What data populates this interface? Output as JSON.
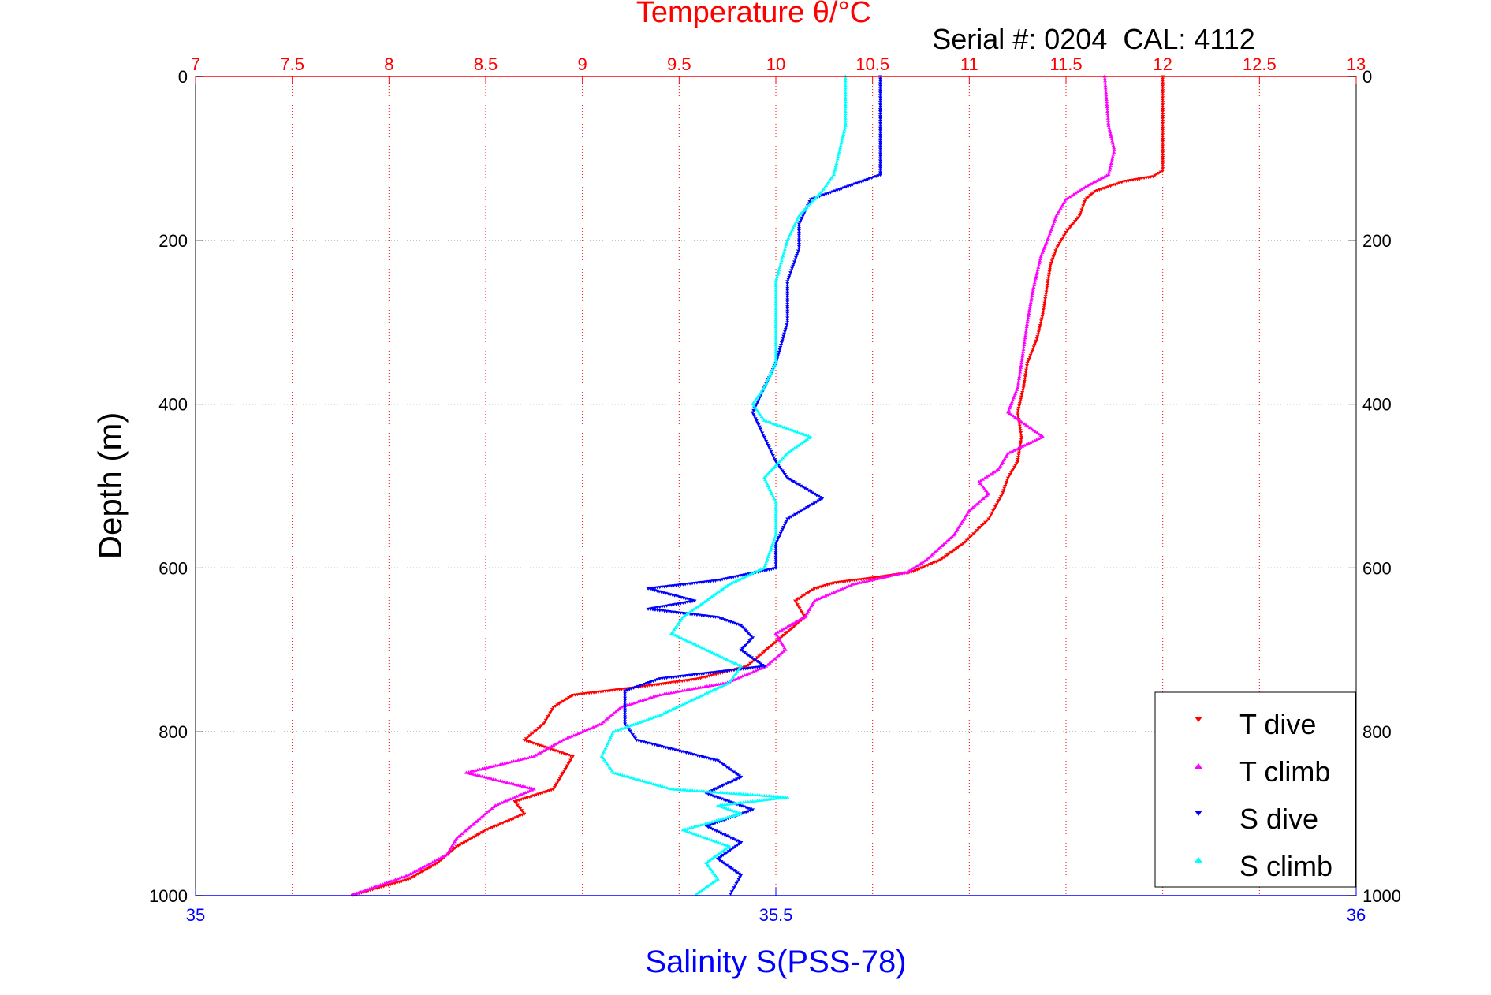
{
  "chart_data": {
    "type": "scatter",
    "title_top": "Temperature θ/°C",
    "title_right": "Serial #: 0204  CAL: 4112",
    "xlabel_bottom": "Salinity S(PSS-78)",
    "ylabel": "Depth (m)",
    "x_top": {
      "label": "Temperature θ/°C",
      "lim": [
        7,
        13
      ],
      "ticks": [
        7,
        7.5,
        8,
        8.5,
        9,
        9.5,
        10,
        10.5,
        11,
        11.5,
        12,
        12.5,
        13
      ],
      "tick_labels": [
        "7",
        "7.5",
        "8",
        "8.5",
        "9",
        "9.5",
        "10",
        "10.5",
        "11",
        "11.5",
        "12",
        "12.5",
        "13"
      ]
    },
    "x_bottom": {
      "label": "Salinity S(PSS-78)",
      "lim": [
        35,
        36
      ],
      "ticks": [
        35,
        35.5,
        36
      ],
      "tick_labels": [
        "35",
        "35.5",
        "36"
      ]
    },
    "y": {
      "label": "Depth (m)",
      "lim": [
        0,
        1000
      ],
      "reversed": true,
      "ticks": [
        0,
        200,
        400,
        600,
        800,
        1000
      ],
      "tick_labels": [
        "0",
        "200",
        "400",
        "600",
        "800",
        "1000"
      ]
    },
    "grid": true,
    "legend_position": "bottom-right",
    "colors": {
      "t_dive": "#ff0000",
      "t_climb": "#ff00ff",
      "s_dive": "#0000ff",
      "s_climb": "#00ffff",
      "top_axis": "#ff0000",
      "bottom_axis": "#0000ff"
    },
    "series": [
      {
        "name": "T dive",
        "axis": "top",
        "marker": "triangle-down",
        "profile": [
          [
            0,
            12.0
          ],
          [
            60,
            12.0
          ],
          [
            115,
            12.0
          ],
          [
            122,
            11.95
          ],
          [
            128,
            11.8
          ],
          [
            140,
            11.65
          ],
          [
            150,
            11.6
          ],
          [
            170,
            11.57
          ],
          [
            190,
            11.5
          ],
          [
            210,
            11.45
          ],
          [
            230,
            11.42
          ],
          [
            260,
            11.4
          ],
          [
            290,
            11.38
          ],
          [
            320,
            11.35
          ],
          [
            350,
            11.3
          ],
          [
            380,
            11.28
          ],
          [
            410,
            11.25
          ],
          [
            440,
            11.27
          ],
          [
            470,
            11.25
          ],
          [
            490,
            11.2
          ],
          [
            510,
            11.17
          ],
          [
            540,
            11.1
          ],
          [
            570,
            10.97
          ],
          [
            590,
            10.85
          ],
          [
            605,
            10.7
          ],
          [
            612,
            10.5
          ],
          [
            618,
            10.3
          ],
          [
            625,
            10.2
          ],
          [
            640,
            10.1
          ],
          [
            660,
            10.15
          ],
          [
            680,
            10.05
          ],
          [
            700,
            9.95
          ],
          [
            720,
            9.85
          ],
          [
            735,
            9.6
          ],
          [
            745,
            9.3
          ],
          [
            755,
            8.95
          ],
          [
            770,
            8.85
          ],
          [
            790,
            8.8
          ],
          [
            810,
            8.7
          ],
          [
            830,
            8.95
          ],
          [
            850,
            8.9
          ],
          [
            870,
            8.85
          ],
          [
            885,
            8.65
          ],
          [
            900,
            8.7
          ],
          [
            920,
            8.5
          ],
          [
            940,
            8.35
          ],
          [
            960,
            8.25
          ],
          [
            980,
            8.1
          ],
          [
            1000,
            7.8
          ]
        ]
      },
      {
        "name": "T climb",
        "axis": "top",
        "marker": "triangle-up",
        "profile": [
          [
            0,
            11.7
          ],
          [
            60,
            11.72
          ],
          [
            90,
            11.75
          ],
          [
            120,
            11.72
          ],
          [
            135,
            11.6
          ],
          [
            150,
            11.5
          ],
          [
            170,
            11.45
          ],
          [
            190,
            11.42
          ],
          [
            220,
            11.37
          ],
          [
            260,
            11.33
          ],
          [
            300,
            11.3
          ],
          [
            350,
            11.27
          ],
          [
            380,
            11.25
          ],
          [
            410,
            11.2
          ],
          [
            440,
            11.38
          ],
          [
            460,
            11.2
          ],
          [
            480,
            11.15
          ],
          [
            495,
            11.05
          ],
          [
            510,
            11.1
          ],
          [
            530,
            11.0
          ],
          [
            560,
            10.92
          ],
          [
            590,
            10.78
          ],
          [
            605,
            10.68
          ],
          [
            620,
            10.4
          ],
          [
            640,
            10.2
          ],
          [
            660,
            10.15
          ],
          [
            680,
            10.0
          ],
          [
            700,
            10.05
          ],
          [
            720,
            9.95
          ],
          [
            740,
            9.75
          ],
          [
            755,
            9.4
          ],
          [
            770,
            9.2
          ],
          [
            790,
            9.1
          ],
          [
            810,
            8.9
          ],
          [
            830,
            8.75
          ],
          [
            850,
            8.4
          ],
          [
            870,
            8.75
          ],
          [
            890,
            8.55
          ],
          [
            910,
            8.45
          ],
          [
            930,
            8.35
          ],
          [
            950,
            8.3
          ],
          [
            975,
            8.1
          ],
          [
            1000,
            7.8
          ]
        ]
      },
      {
        "name": "S dive",
        "axis": "bottom",
        "marker": "triangle-down",
        "profile": [
          [
            0,
            35.59
          ],
          [
            120,
            35.59
          ],
          [
            130,
            35.57
          ],
          [
            150,
            35.53
          ],
          [
            180,
            35.52
          ],
          [
            210,
            35.52
          ],
          [
            250,
            35.51
          ],
          [
            300,
            35.51
          ],
          [
            350,
            35.5
          ],
          [
            380,
            35.49
          ],
          [
            410,
            35.48
          ],
          [
            440,
            35.49
          ],
          [
            470,
            35.5
          ],
          [
            490,
            35.51
          ],
          [
            515,
            35.54
          ],
          [
            540,
            35.51
          ],
          [
            570,
            35.5
          ],
          [
            600,
            35.5
          ],
          [
            615,
            35.45
          ],
          [
            625,
            35.39
          ],
          [
            640,
            35.43
          ],
          [
            650,
            35.39
          ],
          [
            660,
            35.45
          ],
          [
            670,
            35.47
          ],
          [
            685,
            35.48
          ],
          [
            700,
            35.47
          ],
          [
            720,
            35.49
          ],
          [
            735,
            35.4
          ],
          [
            750,
            35.37
          ],
          [
            770,
            35.37
          ],
          [
            790,
            35.37
          ],
          [
            810,
            35.38
          ],
          [
            835,
            35.45
          ],
          [
            855,
            35.47
          ],
          [
            875,
            35.44
          ],
          [
            895,
            35.48
          ],
          [
            915,
            35.44
          ],
          [
            935,
            35.47
          ],
          [
            955,
            35.45
          ],
          [
            975,
            35.47
          ],
          [
            1000,
            35.46
          ]
        ]
      },
      {
        "name": "S climb",
        "axis": "bottom",
        "marker": "triangle-up",
        "profile": [
          [
            0,
            35.56
          ],
          [
            60,
            35.56
          ],
          [
            120,
            35.55
          ],
          [
            140,
            35.54
          ],
          [
            170,
            35.52
          ],
          [
            200,
            35.51
          ],
          [
            250,
            35.5
          ],
          [
            300,
            35.5
          ],
          [
            350,
            35.5
          ],
          [
            380,
            35.49
          ],
          [
            400,
            35.48
          ],
          [
            420,
            35.49
          ],
          [
            440,
            35.53
          ],
          [
            460,
            35.51
          ],
          [
            490,
            35.49
          ],
          [
            520,
            35.5
          ],
          [
            560,
            35.5
          ],
          [
            600,
            35.49
          ],
          [
            620,
            35.46
          ],
          [
            640,
            35.44
          ],
          [
            660,
            35.42
          ],
          [
            680,
            35.41
          ],
          [
            700,
            35.44
          ],
          [
            720,
            35.47
          ],
          [
            740,
            35.46
          ],
          [
            760,
            35.43
          ],
          [
            780,
            35.4
          ],
          [
            800,
            35.36
          ],
          [
            830,
            35.35
          ],
          [
            850,
            35.36
          ],
          [
            870,
            35.41
          ],
          [
            880,
            35.51
          ],
          [
            890,
            35.45
          ],
          [
            900,
            35.47
          ],
          [
            920,
            35.42
          ],
          [
            940,
            35.46
          ],
          [
            960,
            35.44
          ],
          [
            980,
            35.45
          ],
          [
            1000,
            35.43
          ]
        ]
      }
    ]
  }
}
